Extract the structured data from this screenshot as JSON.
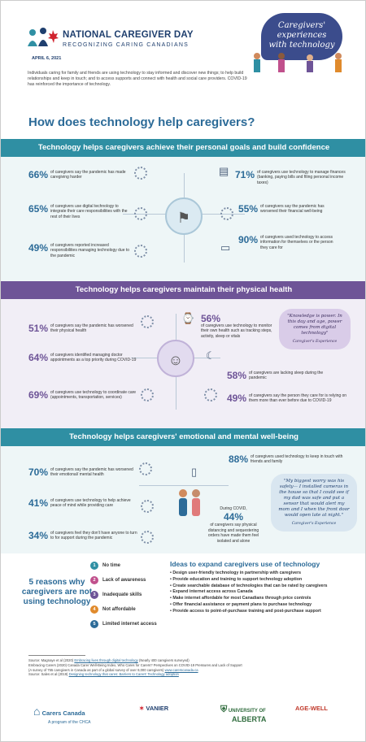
{
  "header": {
    "title": "NATIONAL CAREGIVER DAY",
    "subtitle": "RECOGNIZING CARING CANADIANS",
    "date": "APRIL 6, 2021",
    "cloud": "Caregivers' experiences with technology"
  },
  "intro": "Individuals caring for family and friends are using technology to stay informed and discover new things; to help build relationships and keep in touch; and to access supports and connect with health and social care providers. COVID-19 has reinforced the importance of technology.",
  "main_title": "How does technology help caregivers?",
  "section1": {
    "title": "Technology helps caregivers achieve their personal goals and build confidence",
    "stats": [
      {
        "pct": "66%",
        "text": "of caregivers say the pandemic has made caregiving harder"
      },
      {
        "pct": "65%",
        "text": "of caregivers use digital technology to integrate their care responsibilities with the rest of their lives"
      },
      {
        "pct": "49%",
        "text": "of caregivers reported increased responsibilities managing technology due to the pandemic"
      },
      {
        "pct": "71%",
        "text": "of caregivers use technology to manage finances (banking, paying bills and filing personal income taxes)"
      },
      {
        "pct": "55%",
        "text": "of caregivers say the pandemic has worsened their financial well-being"
      },
      {
        "pct": "90%",
        "text": "of caregivers used technology to access information for themselves or the person they care for"
      }
    ]
  },
  "section2": {
    "title": "Technology helps caregivers maintain their physical health",
    "stats": [
      {
        "pct": "51%",
        "text": "of caregivers say the pandemic has worsened their physical health"
      },
      {
        "pct": "64%",
        "text": "of caregivers identified managing doctor appointments as a top priority during COVID-19"
      },
      {
        "pct": "69%",
        "text": "of caregivers use technology to coordinate care (appointments, transportation, services)"
      },
      {
        "pct": "56%",
        "text": "of caregivers use technology to monitor their own health such as tracking steps, activity, sleep or vitals"
      },
      {
        "pct": "58%",
        "text": "of caregivers are lacking sleep during the pandemic"
      },
      {
        "pct": "49%",
        "text": "of caregivers say the person they care for is relying on them more than ever before due to COVID-19"
      }
    ],
    "quote": "\"Knowledge is power. In this day and age, power comes from digital technology\"",
    "quote_attr": "Caregiver's Experience"
  },
  "section3": {
    "title": "Technology helps caregivers' emotional and mental well-being",
    "stats": [
      {
        "pct": "70%",
        "text": "of caregivers say the pandemic has worsened their emotional/ mental health"
      },
      {
        "pct": "41%",
        "text": "of caregivers use technology to help achieve peace of mind while providing care"
      },
      {
        "pct": "34%",
        "text": "of caregivers feel they don't have anyone to turn to for support during the pandemic"
      },
      {
        "pct": "88%",
        "text": "of caregivers used technology to keep in touch with friends and family"
      }
    ],
    "covid_pre": "During COVID,",
    "covid_pct": "44%",
    "covid_text": "of caregivers say physical distancing and sequestering orders have made them feel isolated and alone",
    "quote": "\"My biggest worry was his safety— I installed cameras in the house so that I could see if my dad was safe and put a sensor that would alert my mom and I when the front door would open late at night.\"",
    "quote_attr": "Caregiver's Experience"
  },
  "reasons": {
    "title": "5 reasons why caregivers are not using technology",
    "items": [
      "No time",
      "Lack of awareness",
      "Inadequate skills",
      "Not affordable",
      "Limited internet access"
    ],
    "colors": [
      "#2f8fa3",
      "#c0508c",
      "#6e5497",
      "#e08a2c",
      "#2c6b98"
    ]
  },
  "ideas": {
    "title": "Ideas to expand caregivers use of technology",
    "items": [
      "Design user-friendly technology in partnership with caregivers",
      "Provide education and training to support technology adoption",
      "Create searchable database of technologies that can be rated by caregivers",
      "Expand internet access across Canada",
      "Make internet affordable for most Canadians through price controls",
      "Offer financial assistance or payment plans to purchase technology",
      "Provide access to point-of-purchase training and post-purchase support"
    ]
  },
  "footnotes": [
    {
      "a": "Source: Magnaye et al (2020) ",
      "b": "Embracing lives through digital technology",
      "c": " (Nearly 400 caregivers surveyed)"
    },
    {
      "a": "Embracing Carers (2020) Canada Carer Well-Being Index, Who Cares for Carers? Perspectives on COVID-19 Pressures and Lack of Support",
      "b": "",
      "c": ""
    },
    {
      "a": "(A survey of 755 caregivers in Canada as part of a global survey of over 9,000 caregivers) ",
      "b": "www.carerscanada.ca",
      "c": ""
    },
    {
      "a": "Source: Sales et al (2019) ",
      "b": "Designing technology that cares: Barriers to Carers' Technology adoption",
      "c": ""
    }
  ],
  "logos": {
    "l1a": "Carers Canada",
    "l1b": "A program of the CHCA",
    "l2": "VANIER",
    "l3a": "UNIVERSITY OF",
    "l3b": "ALBERTA",
    "l4": "AGE-WELL"
  }
}
